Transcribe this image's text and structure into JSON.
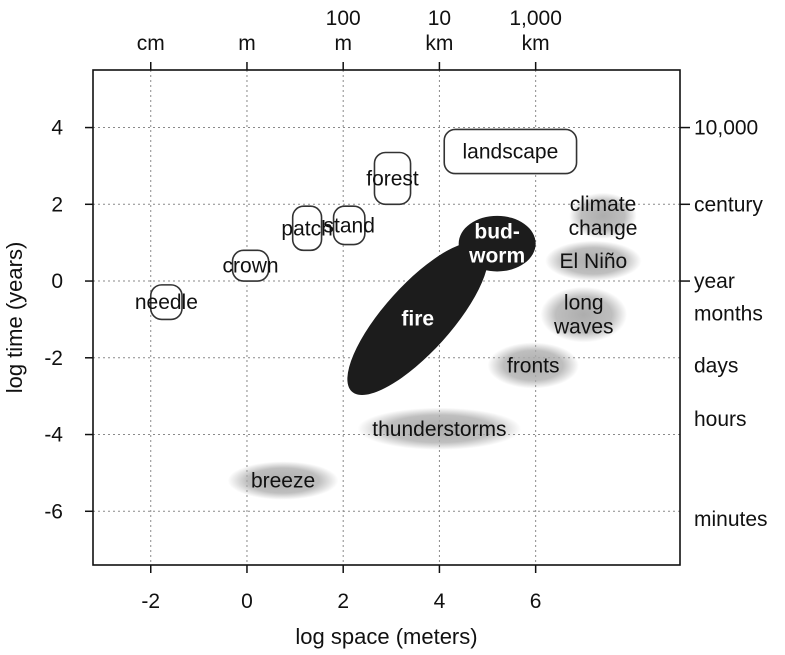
{
  "chart_data": {
    "type": "scatter",
    "title": "",
    "xlabel": "log space (meters)",
    "ylabel": "log time (years)",
    "xlim": [
      -3.2,
      9.0
    ],
    "ylim": [
      -7.4,
      5.5
    ],
    "grid": true,
    "x_ticks": [
      -2,
      0,
      2,
      4,
      6
    ],
    "y_ticks": [
      4,
      2,
      0,
      -2,
      -4,
      -6
    ],
    "top_axis_labels": [
      {
        "x": -2,
        "lines": [
          "cm"
        ]
      },
      {
        "x": 0,
        "lines": [
          "m"
        ]
      },
      {
        "x": 2,
        "lines": [
          "100",
          "m"
        ]
      },
      {
        "x": 4,
        "lines": [
          "10",
          "km"
        ]
      },
      {
        "x": 6,
        "lines": [
          "1,000",
          "km"
        ]
      }
    ],
    "right_axis_labels": [
      {
        "y": 4,
        "text": "10,000",
        "tick": true
      },
      {
        "y": 2,
        "text": "century",
        "tick": true
      },
      {
        "y": 0,
        "text": "year",
        "tick": true
      },
      {
        "y": -0.85,
        "text": "months",
        "tick": false
      },
      {
        "y": -2.2,
        "text": "days",
        "tick": false
      },
      {
        "y": -3.6,
        "text": "hours",
        "tick": false
      },
      {
        "y": -6.2,
        "text": "minutes",
        "tick": false
      }
    ],
    "phenomena": [
      {
        "name": "needle",
        "style": "outline",
        "x": [
          -2.0,
          -1.35
        ],
        "y": [
          -1.0,
          -0.1
        ],
        "lines": [
          "needle"
        ]
      },
      {
        "name": "crown",
        "style": "outline",
        "x": [
          -0.3,
          0.45
        ],
        "y": [
          0.0,
          0.8
        ],
        "lines": [
          "crown"
        ]
      },
      {
        "name": "patch",
        "style": "outline",
        "x": [
          0.95,
          1.55
        ],
        "y": [
          0.8,
          1.95
        ],
        "lines": [
          "patch"
        ]
      },
      {
        "name": "stand",
        "style": "outline",
        "x": [
          1.8,
          2.45
        ],
        "y": [
          0.95,
          1.95
        ],
        "lines": [
          "stand"
        ]
      },
      {
        "name": "forest",
        "style": "outline",
        "x": [
          2.65,
          3.4
        ],
        "y": [
          2.0,
          3.35
        ],
        "lines": [
          "forest"
        ]
      },
      {
        "name": "landscape",
        "style": "outline",
        "x": [
          4.1,
          6.85
        ],
        "y": [
          2.8,
          3.95
        ],
        "lines": [
          "landscape"
        ]
      },
      {
        "name": "fire",
        "style": "dark-ellipse",
        "x": [
          2.0,
          5.1
        ],
        "y": [
          -2.65,
          0.7
        ],
        "lines": [
          "fire"
        ]
      },
      {
        "name": "budworm",
        "style": "dark-ellipse",
        "x": [
          4.4,
          6.0
        ],
        "y": [
          0.25,
          1.7
        ],
        "lines": [
          "bud-",
          "worm"
        ]
      },
      {
        "name": "climate change",
        "style": "gray-cloud",
        "x": [
          6.7,
          8.1
        ],
        "y": [
          1.1,
          2.3
        ],
        "lines": [
          "climate",
          "change"
        ]
      },
      {
        "name": "El Niño",
        "style": "gray-cloud",
        "x": [
          6.2,
          8.2
        ],
        "y": [
          0.0,
          1.05
        ],
        "lines": [
          "El Niño"
        ]
      },
      {
        "name": "long waves",
        "style": "gray-cloud",
        "x": [
          6.1,
          7.9
        ],
        "y": [
          -1.6,
          -0.15
        ],
        "lines": [
          "long",
          "waves"
        ]
      },
      {
        "name": "fronts",
        "style": "gray-cloud",
        "x": [
          5.0,
          6.9
        ],
        "y": [
          -2.8,
          -1.6
        ],
        "lines": [
          "fronts"
        ]
      },
      {
        "name": "thunderstorms",
        "style": "gray-cloud",
        "x": [
          2.3,
          5.7
        ],
        "y": [
          -4.4,
          -3.3
        ],
        "lines": [
          "thunderstorms"
        ]
      },
      {
        "name": "breeze",
        "style": "gray-cloud",
        "x": [
          -0.4,
          1.9
        ],
        "y": [
          -5.7,
          -4.7
        ],
        "lines": [
          "breeze"
        ]
      }
    ],
    "colors": {
      "dark": "#1c1c1c",
      "gray": "#a9a9a9",
      "outline": "#333333",
      "grid": "#8a8a8a"
    }
  }
}
